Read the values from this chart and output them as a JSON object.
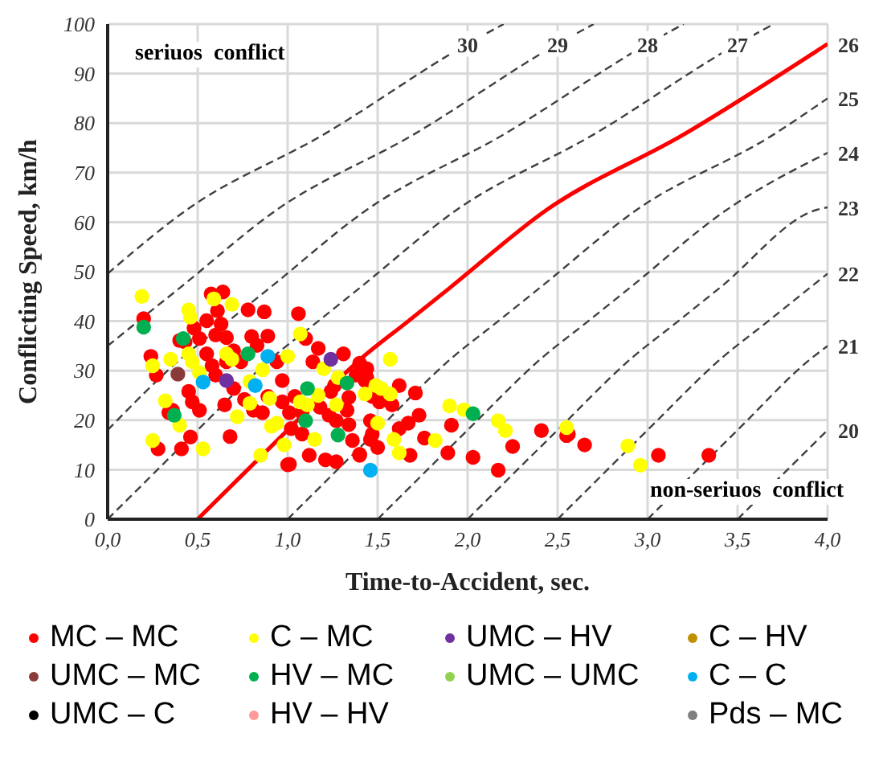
{
  "chart_data": {
    "type": "scatter",
    "xlabel": "Time-to-Accident, sec.",
    "ylabel": "Conflicting Speed, km/h",
    "annotations": [
      "seriuos  conflict",
      "non-seriuos  conflict"
    ],
    "xlim": [
      0,
      4
    ],
    "xticks": [
      {
        "value": 0,
        "label": "0,0"
      },
      {
        "value": 0.5,
        "label": "0,5"
      },
      {
        "value": 1,
        "label": "1,0"
      },
      {
        "value": 1.5,
        "label": "1,5"
      },
      {
        "value": 2,
        "label": "2,0"
      },
      {
        "value": 2.5,
        "label": "2,5"
      },
      {
        "value": 3,
        "label": "3,0"
      },
      {
        "value": 3.5,
        "label": "3,5"
      },
      {
        "value": 4,
        "label": "4,0"
      }
    ],
    "ylim": [
      0,
      100
    ],
    "yticks": [
      0,
      10,
      20,
      30,
      40,
      50,
      60,
      70,
      80,
      90,
      100
    ],
    "grid": true,
    "legend": "bottom",
    "marker": "circle",
    "series": [
      {
        "name": "MC – MC",
        "color": "#ff0000",
        "x": [
          0.2,
          0.24,
          0.27,
          0.28,
          0.41,
          0.46,
          0.43,
          0.575,
          0.64,
          0.61,
          0.63,
          0.66,
          0.7,
          0.74,
          0.78,
          0.87,
          0.8,
          0.83,
          0.89,
          0.94,
          0.97,
          0.48,
          0.51,
          0.55,
          0.6,
          0.55,
          0.58,
          0.6,
          0.66,
          0.45,
          0.47,
          0.51,
          0.36,
          0.34,
          0.4,
          0.68,
          0.65,
          0.7,
          0.76,
          0.81,
          0.86,
          0.89,
          0.97,
          1.01,
          1.04,
          1.02,
          1.08,
          1.06,
          1.1,
          1.14,
          1.17,
          1.31,
          1.44,
          1.47,
          1.51,
          1.34,
          1.24,
          1.18,
          1.23,
          1.26,
          1.01,
          1.12,
          1.21,
          1.27,
          1.36,
          1.4,
          1.46,
          1.47,
          1.62,
          1.62,
          1.08,
          1.4,
          1.44,
          1.38,
          1.43,
          1.71,
          1.58,
          1.73,
          1.67,
          1.33,
          1.27,
          1.34,
          1.76,
          1.91,
          1.5,
          1.46,
          1.68,
          1.89,
          2.03,
          2.17,
          2.25,
          2.41,
          2.56,
          2.65,
          1.4,
          1.0,
          2.55,
          3.06,
          3.34
        ],
        "values": [
          40.5,
          32.9,
          29.1,
          14.2,
          14.2,
          16.6,
          35.8,
          45.5,
          45.9,
          42.1,
          39.4,
          36.7,
          34,
          31.8,
          42.3,
          41.9,
          36.9,
          35.1,
          37,
          31.8,
          28,
          38.6,
          36.5,
          40.1,
          37.2,
          33.4,
          31,
          29.1,
          31.8,
          25.8,
          23.7,
          22,
          22,
          21.5,
          36.1,
          16.7,
          23.1,
          26.4,
          24.2,
          22,
          21.5,
          24.8,
          23.7,
          21.5,
          24.8,
          18.3,
          21.5,
          41.5,
          36.5,
          31.8,
          34.5,
          33.4,
          28.6,
          24.8,
          23.7,
          24.6,
          25.8,
          22.6,
          21,
          27,
          11.1,
          12.9,
          12,
          11.6,
          15.9,
          13.1,
          19.9,
          17.2,
          27,
          18.3,
          17.2,
          31.5,
          30.4,
          29.1,
          28,
          25.5,
          23.1,
          21,
          19.4,
          22,
          19.9,
          19.1,
          16.4,
          19,
          14.5,
          16.1,
          12.9,
          13.4,
          12.5,
          9.9,
          14.7,
          17.9,
          17.2,
          15,
          12.9,
          11,
          16.9,
          12.9,
          12.9
        ]
      },
      {
        "name": "C – MC",
        "color": "#ffff00",
        "x": [
          0.19,
          0.45,
          0.46,
          0.59,
          0.69,
          0.35,
          0.25,
          0.45,
          0.47,
          0.51,
          0.66,
          0.69,
          0.32,
          0.4,
          0.25,
          0.53,
          0.72,
          0.79,
          0.86,
          0.79,
          0.9,
          0.91,
          0.94,
          0.85,
          0.98,
          1.07,
          1.0,
          1.07,
          1.11,
          1.15,
          1.17,
          1.2,
          1.28,
          1.27,
          1.43,
          1.49,
          1.52,
          1.57,
          1.57,
          1.5,
          1.59,
          1.62,
          1.82,
          1.9,
          1.98,
          2.17,
          2.21,
          2.55,
          2.89,
          2.96
        ],
        "values": [
          45,
          42.3,
          40.8,
          44.5,
          43.4,
          32.3,
          31,
          33.4,
          31.8,
          29.6,
          33.4,
          32.3,
          23.9,
          19,
          15.9,
          14.2,
          20.7,
          23.4,
          30.2,
          27.8,
          24.4,
          18.8,
          19.4,
          12.9,
          15,
          37.4,
          32.9,
          23.7,
          23.1,
          16.1,
          25,
          30.4,
          28.6,
          23.1,
          25.3,
          27,
          26.4,
          32.3,
          25.3,
          19.4,
          16.1,
          13.4,
          15.9,
          22.9,
          22.1,
          19.9,
          17.9,
          18.5,
          14.8,
          10.9
        ]
      },
      {
        "name": "UMC – HV",
        "color": "#7030a0",
        "x": [
          0.66,
          1.24
        ],
        "values": [
          28,
          32.3
        ]
      },
      {
        "name": "C – HV",
        "color": "#bf9000"
      },
      {
        "name": "UMC – MC",
        "color": "#8b3a3a",
        "x": [
          0.39
        ],
        "values": [
          29.3
        ]
      },
      {
        "name": "HV – MC",
        "color": "#00b050",
        "x": [
          0.2,
          0.42,
          0.78,
          0.37,
          1.11,
          1.1,
          1.28,
          1.33,
          2.03
        ],
        "values": [
          38.8,
          36.5,
          33.4,
          21,
          26.4,
          19.9,
          17,
          27.5,
          21.3
        ]
      },
      {
        "name": "UMC – UMC",
        "color": "#92d050"
      },
      {
        "name": "C – C",
        "color": "#00b0f0",
        "x": [
          0.89,
          0.53,
          0.82,
          1.46
        ],
        "values": [
          32.9,
          27.7,
          27,
          9.9
        ]
      },
      {
        "name": "UMC – C",
        "color": "#000000"
      },
      {
        "name": "HV – HV",
        "color": "#ff9999"
      },
      {
        "name": "Pds – MC",
        "color": "#808080"
      },
      {
        "name": "30",
        "type": "line",
        "line_style": "dashed",
        "marker": "none",
        "color": "#404040",
        "x": [
          0,
          0.44,
          1.2,
          2.0,
          2.2
        ],
        "values": [
          49.6,
          62.5,
          77.7,
          96,
          100
        ]
      },
      {
        "name": "29",
        "type": "line",
        "line_style": "dashed",
        "marker": "none",
        "color": "#404040",
        "x": [
          0,
          0.17,
          0.4,
          0.94,
          1.7,
          2.5,
          2.7
        ],
        "values": [
          35,
          40,
          46.7,
          62.5,
          77.7,
          96,
          100
        ]
      },
      {
        "name": "28",
        "type": "line",
        "line_style": "dashed",
        "marker": "none",
        "color": "#404040",
        "x": [
          0,
          0.41,
          0.67,
          0.9,
          1.44,
          2.2,
          3.0,
          3.2
        ],
        "values": [
          18,
          32.5,
          40,
          46.7,
          62.5,
          77.7,
          96,
          100
        ]
      },
      {
        "name": "27",
        "type": "line",
        "line_style": "dashed",
        "marker": "none",
        "color": "#404040",
        "x": [
          0,
          0.5,
          0.91,
          1.17,
          1.4,
          1.94,
          2.7,
          3.5,
          3.7
        ],
        "values": [
          0,
          18,
          32.5,
          40,
          46.7,
          62.5,
          77.7,
          96,
          100
        ]
      },
      {
        "name": "26",
        "type": "line",
        "line_style": "solid",
        "marker": "none",
        "color": "#ff0000",
        "x": [
          0.5,
          1.0,
          1.41,
          1.67,
          1.9,
          2.44,
          3.2,
          4.0
        ],
        "values": [
          0,
          18,
          32.5,
          40,
          46.7,
          62.5,
          77.7,
          96
        ]
      },
      {
        "name": "25",
        "type": "line",
        "line_style": "dashed",
        "marker": "none",
        "color": "#404040",
        "x": [
          1.0,
          1.5,
          1.91,
          2.17,
          2.4,
          2.94,
          3.7,
          4.0
        ],
        "values": [
          0,
          18,
          32.5,
          40,
          46.7,
          62.5,
          77.7,
          85
        ]
      },
      {
        "name": "24",
        "type": "line",
        "line_style": "dashed",
        "marker": "none",
        "color": "#404040",
        "x": [
          1.5,
          2.0,
          2.41,
          2.67,
          2.9,
          3.44,
          4.0
        ],
        "values": [
          0,
          18,
          32.5,
          40,
          46.7,
          62.5,
          74
        ]
      },
      {
        "name": "23",
        "type": "line",
        "line_style": "dashed",
        "marker": "none",
        "color": "#404040",
        "x": [
          2.0,
          2.5,
          2.91,
          3.17,
          3.4,
          3.94,
          4.0
        ],
        "values": [
          0,
          18,
          32.5,
          40,
          46.7,
          62.5,
          63
        ]
      },
      {
        "name": "22",
        "type": "line",
        "line_style": "dashed",
        "marker": "none",
        "color": "#404040",
        "x": [
          2.5,
          3.0,
          3.41,
          3.67,
          3.9,
          4.0
        ],
        "values": [
          0,
          18,
          32.5,
          40,
          46.7,
          49.6
        ]
      },
      {
        "name": "21",
        "type": "line",
        "line_style": "dashed",
        "marker": "none",
        "color": "#404040",
        "x": [
          3.0,
          3.5,
          3.91,
          4.0
        ],
        "values": [
          0,
          18,
          32.5,
          35
        ]
      },
      {
        "name": "20",
        "type": "line",
        "line_style": "dashed",
        "marker": "none",
        "color": "#404040",
        "x": [
          3.5,
          4.0
        ],
        "values": [
          0,
          18
        ]
      }
    ]
  }
}
